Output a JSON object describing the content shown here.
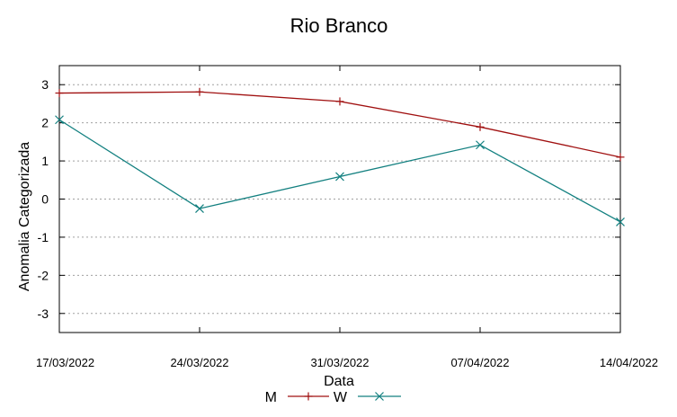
{
  "chart_data": {
    "type": "line",
    "title": "Rio Branco",
    "xlabel": "Data",
    "ylabel": "Anomalia Categorizada",
    "x": [
      "17/03/2022",
      "24/03/2022",
      "31/03/2022",
      "07/04/2022",
      "14/04/2022"
    ],
    "ylim": [
      -3.5,
      3.5
    ],
    "yticks": [
      3,
      2,
      1,
      0,
      -1,
      -2,
      -3
    ],
    "grid": true,
    "legend_position": "bottom",
    "series": [
      {
        "name": "M",
        "values": [
          2.78,
          2.81,
          2.56,
          1.89,
          1.1
        ],
        "color": "#a01010",
        "marker": "plus"
      },
      {
        "name": "W",
        "values": [
          2.08,
          -0.25,
          0.59,
          1.42,
          -0.6
        ],
        "color": "#138080",
        "marker": "cross"
      }
    ]
  }
}
